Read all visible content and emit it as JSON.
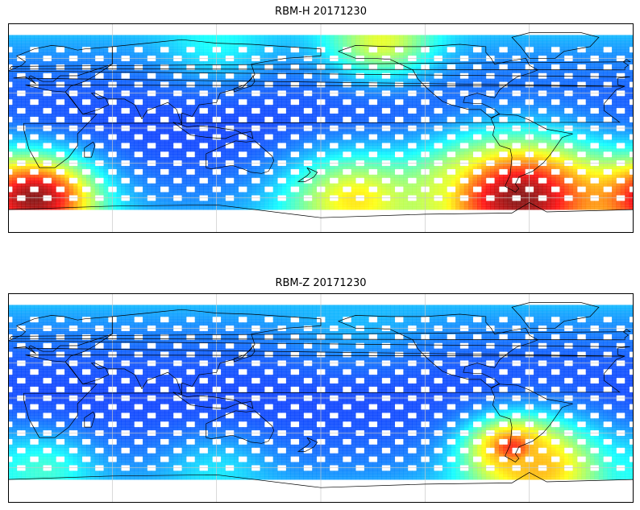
{
  "panels": [
    {
      "id": "top",
      "title": "RBM-H 20171230",
      "colormap": "jet",
      "hotspots": [
        {
          "lon": 15,
          "lat": -60,
          "radius_deg": 35,
          "level": 1.0
        },
        {
          "lon": 295,
          "lat": -60,
          "radius_deg": 50,
          "level": 1.0
        },
        {
          "lon": 200,
          "lat": -62,
          "radius_deg": 40,
          "level": 0.65
        },
        {
          "lon": 265,
          "lat": -55,
          "radius_deg": 30,
          "level": 0.6
        },
        {
          "lon": 215,
          "lat": 75,
          "radius_deg": 30,
          "level": 0.6
        },
        {
          "lon": 120,
          "lat": 75,
          "radius_deg": 30,
          "level": 0.38
        }
      ]
    },
    {
      "id": "bottom",
      "title": "RBM-Z 20171230",
      "colormap": "jet",
      "hotspots": [
        {
          "lon": 290,
          "lat": -42,
          "radius_deg": 22,
          "level": 0.85
        },
        {
          "lon": 305,
          "lat": -60,
          "radius_deg": 40,
          "level": 0.7
        },
        {
          "lon": 20,
          "lat": -62,
          "radius_deg": 30,
          "level": 0.42
        },
        {
          "lon": 120,
          "lat": -65,
          "radius_deg": 30,
          "level": 0.35
        },
        {
          "lon": 200,
          "lat": 75,
          "radius_deg": 40,
          "level": 0.3
        }
      ]
    }
  ],
  "map": {
    "lon_range": [
      0,
      360
    ],
    "lat_range": [
      -90,
      90
    ],
    "data_lat_range": [
      -70,
      80
    ],
    "grid_lon_step": 60,
    "grid_lat_step": 30,
    "track_color_low": "#6a6af5",
    "track_color_mid": "#5cc8ff",
    "gridline_color": "#c8c8c8",
    "coastline_color": "#000000"
  }
}
